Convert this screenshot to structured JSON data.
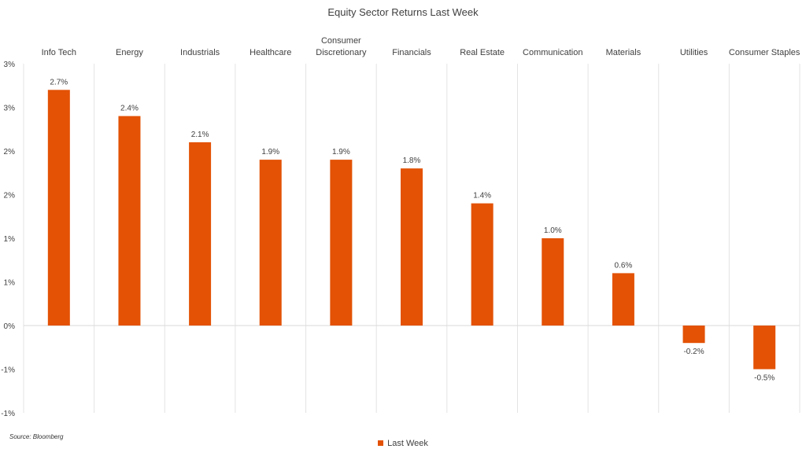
{
  "colors": {
    "bar": "#E35205",
    "grid": "#e3e3e3",
    "axis": "#d9d9d9",
    "text": "#404040"
  },
  "source": "Source: Bloomberg",
  "chart_data": {
    "type": "bar",
    "title": "Equity Sector Returns Last Week",
    "xlabel": "",
    "ylabel": "",
    "ylim": [
      -1,
      3
    ],
    "grid": "vertical category separators",
    "legend_position": "bottom",
    "category_labels_position": "top",
    "y_ticks": [
      "3%",
      "3%",
      "2%",
      "2%",
      "1%",
      "1%",
      "0%",
      "-1%",
      "-1%"
    ],
    "categories": [
      "Info Tech",
      "Energy",
      "Industrials",
      "Healthcare",
      "Consumer Discretionary",
      "Financials",
      "Real Estate",
      "Communication",
      "Materials",
      "Utilities",
      "Consumer Staples"
    ],
    "series": [
      {
        "name": "Last Week",
        "values": [
          2.7,
          2.4,
          2.1,
          1.9,
          1.9,
          1.8,
          1.4,
          1.0,
          0.6,
          -0.2,
          -0.5
        ],
        "labels": [
          "2.7%",
          "2.4%",
          "2.1%",
          "1.9%",
          "1.9%",
          "1.8%",
          "1.4%",
          "1.0%",
          "0.6%",
          "-0.2%",
          "-0.5%"
        ]
      }
    ]
  }
}
